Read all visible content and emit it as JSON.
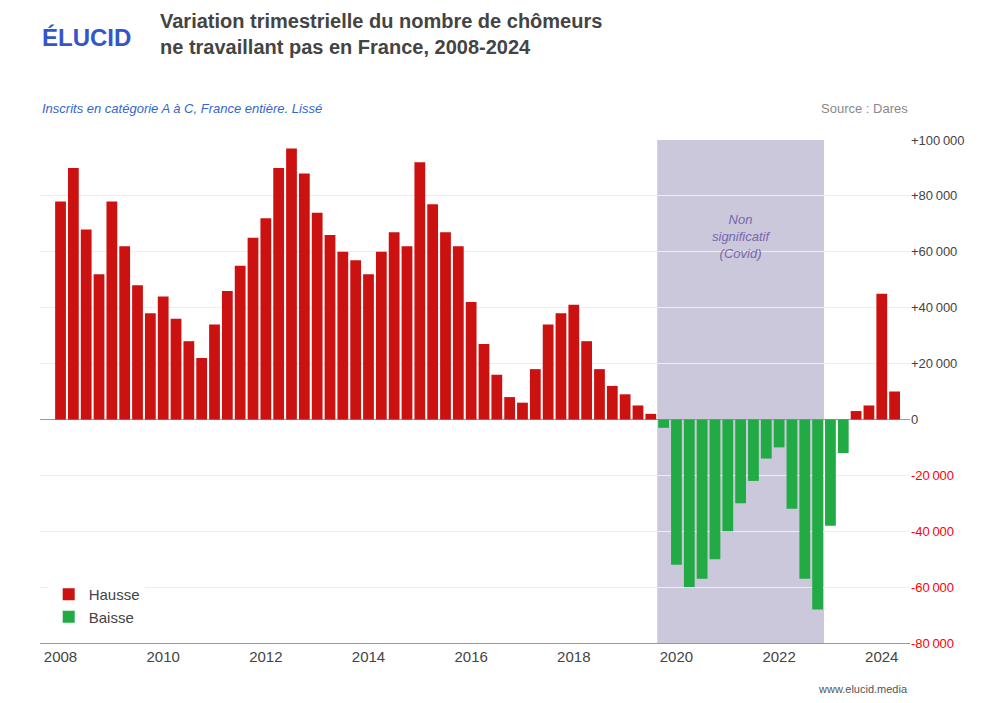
{
  "chart_data": {
    "type": "bar",
    "title": "Variation trimestrielle du nombre de chômeurs\nne travaillant pas en France, 2008-2024",
    "brand": "ÉLUCID",
    "subtitle": "Inscrits en catégorie A à C, France entière. Lissé",
    "source": "Source : Dares",
    "website": "www.elucid.media",
    "x": [
      2008.0,
      2008.25,
      2008.5,
      2008.75,
      2009.0,
      2009.25,
      2009.5,
      2009.75,
      2010.0,
      2010.25,
      2010.5,
      2010.75,
      2011.0,
      2011.25,
      2011.5,
      2011.75,
      2012.0,
      2012.25,
      2012.5,
      2012.75,
      2013.0,
      2013.25,
      2013.5,
      2013.75,
      2014.0,
      2014.25,
      2014.5,
      2014.75,
      2015.0,
      2015.25,
      2015.5,
      2015.75,
      2016.0,
      2016.25,
      2016.5,
      2016.75,
      2017.0,
      2017.25,
      2017.5,
      2017.75,
      2018.0,
      2018.25,
      2018.5,
      2018.75,
      2019.0,
      2019.25,
      2019.5,
      2019.75,
      2020.0,
      2020.25,
      2020.5,
      2020.75,
      2021.0,
      2021.25,
      2021.5,
      2021.75,
      2022.0,
      2022.25,
      2022.5,
      2022.75,
      2023.0,
      2023.25,
      2023.5,
      2023.75,
      2024.0,
      2024.25
    ],
    "series": [
      {
        "name": "Hausse",
        "color": "#cc1111",
        "values": [
          78000,
          90000,
          68000,
          52000,
          78000,
          62000,
          48000,
          38000,
          44000,
          36000,
          28000,
          22000,
          34000,
          46000,
          55000,
          65000,
          72000,
          90000,
          97000,
          88000,
          74000,
          66000,
          60000,
          57000,
          52000,
          60000,
          67000,
          62000,
          92000,
          77000,
          67000,
          62000,
          42000,
          27000,
          16000,
          8000,
          6000,
          18000,
          34000,
          38000,
          41000,
          28000,
          18000,
          12000,
          9000,
          5000,
          2000,
          null,
          null,
          null,
          null,
          null,
          null,
          null,
          null,
          null,
          null,
          null,
          null,
          null,
          null,
          null,
          3000,
          5000,
          45000,
          10000
        ]
      },
      {
        "name": "Baisse",
        "color": "#22aa44",
        "values": [
          null,
          null,
          null,
          null,
          null,
          null,
          null,
          null,
          null,
          null,
          null,
          null,
          null,
          null,
          null,
          null,
          null,
          null,
          null,
          null,
          null,
          null,
          null,
          null,
          null,
          null,
          null,
          null,
          null,
          null,
          null,
          null,
          null,
          null,
          null,
          null,
          null,
          null,
          null,
          null,
          null,
          null,
          null,
          null,
          null,
          null,
          null,
          -3000,
          -52000,
          -60000,
          -57000,
          -50000,
          -40000,
          -30000,
          -22000,
          -14000,
          -10000,
          -32000,
          -57000,
          -68000,
          -38000,
          -12000,
          null,
          null,
          null,
          null
        ]
      }
    ],
    "xlim": [
      2007.6,
      2024.55
    ],
    "xticks": [
      2008,
      2010,
      2012,
      2014,
      2016,
      2018,
      2020,
      2022,
      2024
    ],
    "ylim": [
      -80000,
      100000
    ],
    "yticks": [
      {
        "value": -80000,
        "label": "-80 000"
      },
      {
        "value": -60000,
        "label": "-60 000"
      },
      {
        "value": -40000,
        "label": "-40 000"
      },
      {
        "value": -20000,
        "label": "-20 000"
      },
      0,
      {
        "value": 20000,
        "label": "+20 000"
      },
      {
        "value": 40000,
        "label": "+40 000"
      },
      {
        "value": 60000,
        "label": "+60 000"
      },
      {
        "value": 80000,
        "label": "+80 000"
      },
      {
        "value": 100000,
        "label": "+100 000"
      }
    ],
    "grid": true,
    "legend": "lower left",
    "highlight": {
      "x0": 2019.625,
      "x1": 2022.875,
      "color": "#ccc8dc"
    },
    "annotations": [
      {
        "text": "Non\nsignificatif\n(Covid)",
        "x": 2021.25,
        "y": 75000
      }
    ]
  }
}
